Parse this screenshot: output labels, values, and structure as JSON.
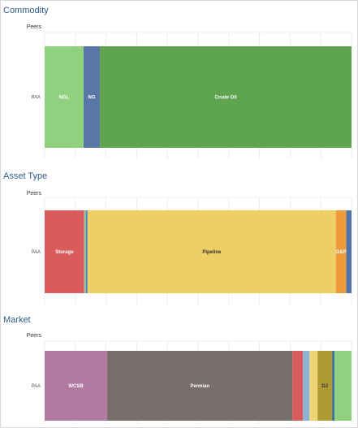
{
  "chart_data": [
    {
      "type": "bar",
      "orientation": "horizontal-stacked-100",
      "title": "Commodity",
      "header_label": "Peers",
      "categories": [
        "PAA"
      ],
      "grid": true,
      "series": [
        {
          "name": "NGL",
          "values": [
            12.7
          ],
          "color": "#8fd17f",
          "label": "NGL"
        },
        {
          "name": "NG",
          "values": [
            5.3
          ],
          "color": "#5876a6",
          "label": "NG"
        },
        {
          "name": "Crude Oil",
          "values": [
            82.0
          ],
          "color": "#5fa44f",
          "label": "Crude Oil"
        }
      ]
    },
    {
      "type": "bar",
      "orientation": "horizontal-stacked-100",
      "title": "Asset Type",
      "header_label": "Peers",
      "categories": [
        "PAA"
      ],
      "grid": true,
      "series": [
        {
          "name": "Storage",
          "values": [
            12.9
          ],
          "color": "#d95c5a",
          "label": "Storage"
        },
        {
          "name": "",
          "values": [
            0.5
          ],
          "color": "#8fc9a0",
          "label": ""
        },
        {
          "name": "",
          "values": [
            0.6
          ],
          "color": "#5a8ab5",
          "label": ""
        },
        {
          "name": "Pipeline",
          "values": [
            80.9
          ],
          "color": "#edcf66",
          "label": "Pipeline"
        },
        {
          "name": "G&P",
          "values": [
            3.4
          ],
          "color": "#ee9a3a",
          "label": "G&P"
        },
        {
          "name": "",
          "values": [
            1.7
          ],
          "color": "#4e74aa",
          "label": ""
        }
      ]
    },
    {
      "type": "bar",
      "orientation": "horizontal-stacked-100",
      "title": "Market",
      "header_label": "Peers",
      "categories": [
        "PAA"
      ],
      "grid": true,
      "series": [
        {
          "name": "WCSB",
          "values": [
            21.0
          ],
          "color": "#b07aa1",
          "label": "WCSB"
        },
        {
          "name": "Permian",
          "values": [
            62.2
          ],
          "color": "#776d6a",
          "label": "Permian"
        },
        {
          "name": "",
          "values": [
            3.5
          ],
          "color": "#d95c5a",
          "label": ""
        },
        {
          "name": "",
          "values": [
            2.2
          ],
          "color": "#8cb4d2",
          "label": ""
        },
        {
          "name": "",
          "values": [
            2.7
          ],
          "color": "#edd373",
          "label": ""
        },
        {
          "name": "DJ",
          "values": [
            4.9
          ],
          "color": "#b09a34",
          "label": "DJ"
        },
        {
          "name": "",
          "values": [
            0.8
          ],
          "color": "#3f6fa0",
          "label": ""
        },
        {
          "name": "",
          "values": [
            5.7
          ],
          "color": "#8fd17f",
          "label": ""
        }
      ]
    }
  ]
}
